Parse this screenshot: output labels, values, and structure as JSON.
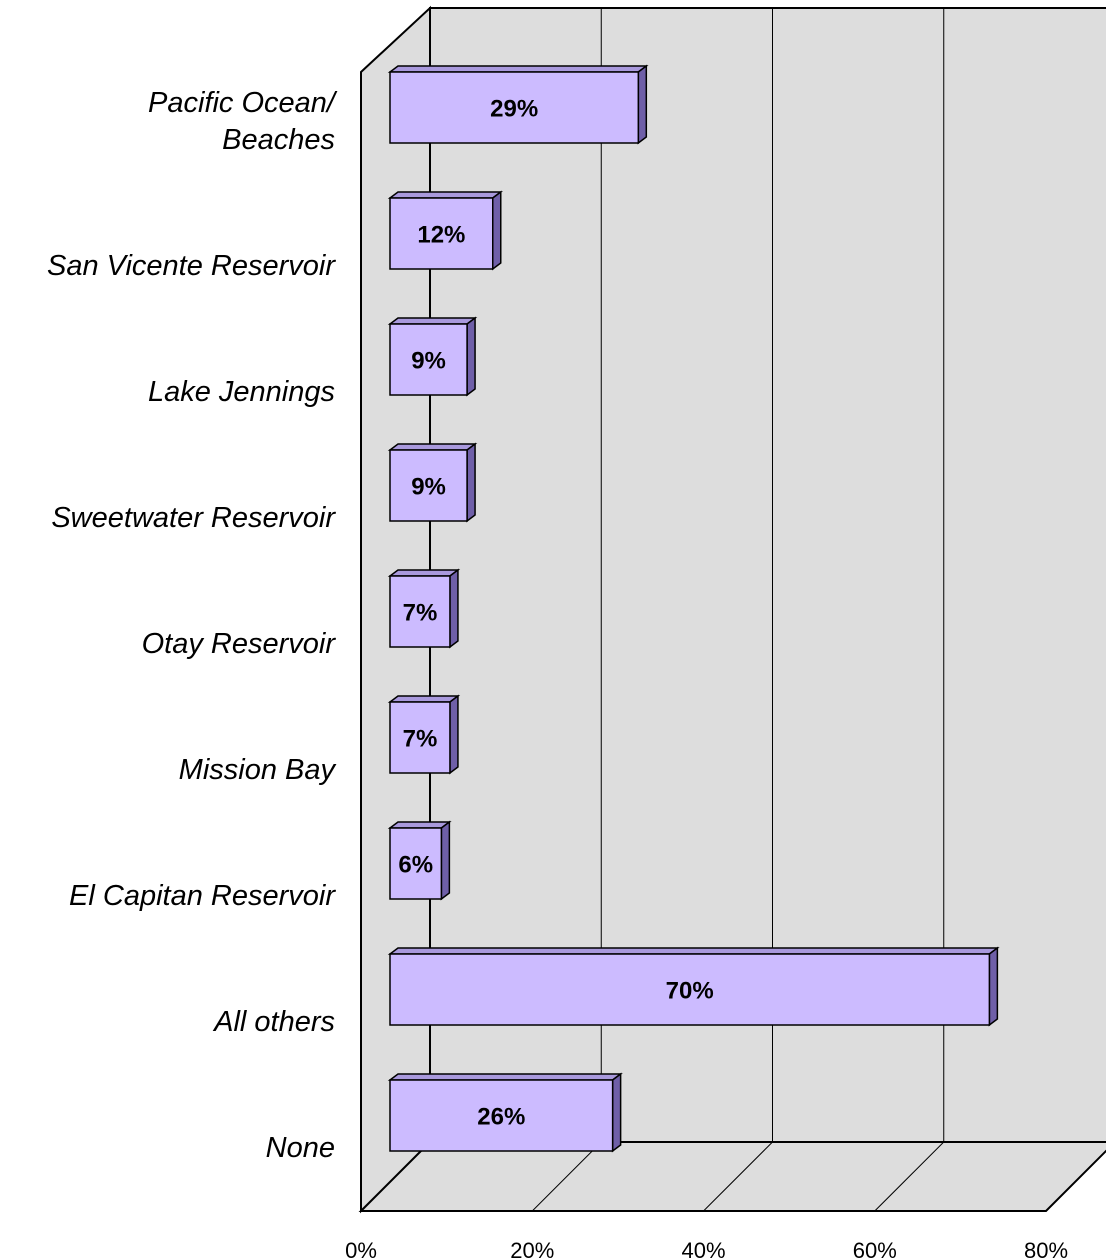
{
  "chart_data": {
    "type": "bar",
    "orientation": "horizontal",
    "categories": [
      "Pacific Ocean/\nBeaches",
      "San Vicente Reservoir",
      "Lake Jennings",
      "Sweetwater Reservoir",
      "Otay Reservoir",
      "Mission Bay",
      "El Capitan Reservoir",
      "All others",
      "None"
    ],
    "values": [
      29,
      12,
      9,
      9,
      7,
      7,
      6,
      70,
      26
    ],
    "value_labels": [
      "29%",
      "12%",
      "9%",
      "9%",
      "7%",
      "7%",
      "6%",
      "70%",
      "26%"
    ],
    "color": "#ccbbff",
    "xlim": [
      0,
      80
    ],
    "xticks": [
      {
        "value": 0,
        "label": "0%"
      },
      {
        "value": 20,
        "label": "20%"
      },
      {
        "value": 40,
        "label": "40%"
      },
      {
        "value": 60,
        "label": "60%"
      },
      {
        "value": 80,
        "label": "80%"
      }
    ],
    "grid": true
  }
}
